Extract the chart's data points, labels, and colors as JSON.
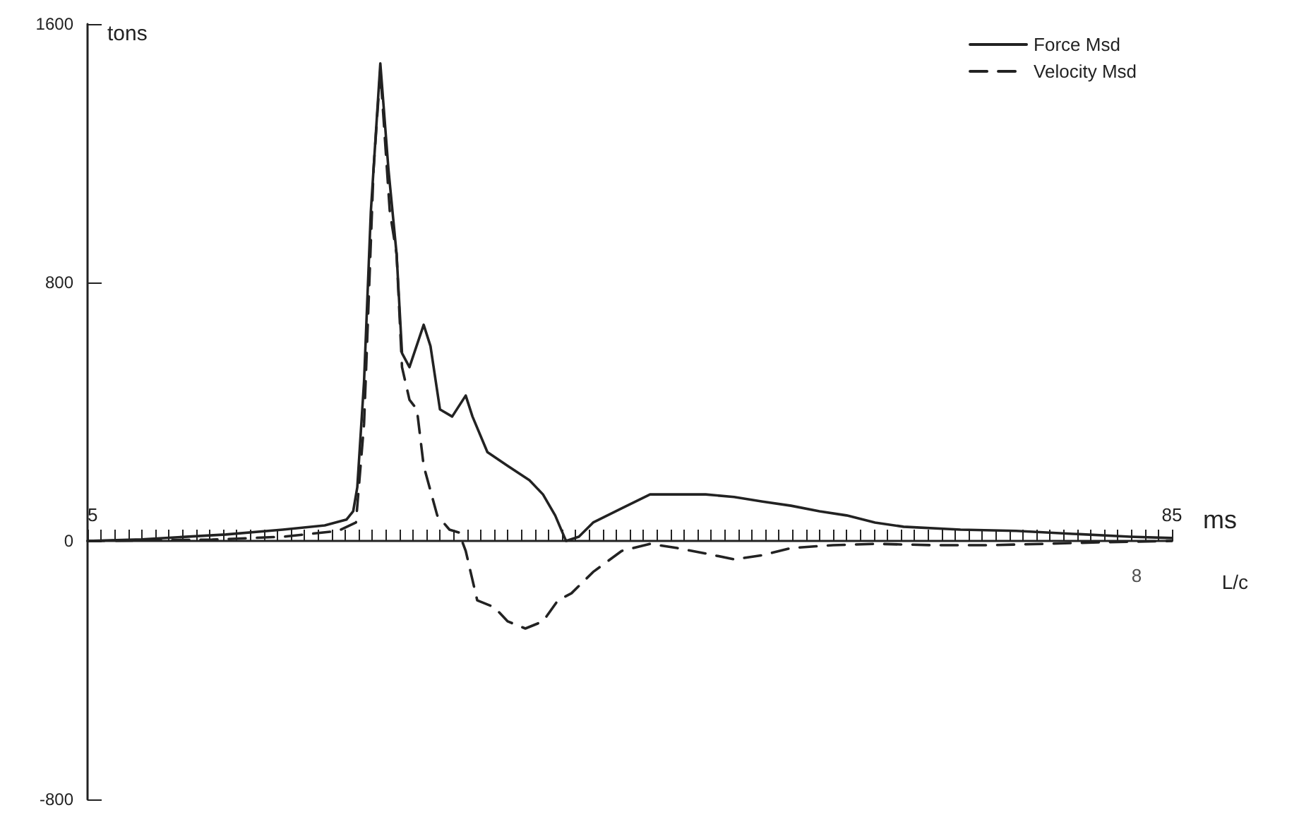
{
  "chart_data": {
    "type": "line",
    "xlabel": "ms",
    "ylabel": "tons",
    "legend": "top right",
    "marker": "none",
    "xlim": [
      5,
      85
    ],
    "ylim": [
      -800,
      1600
    ],
    "yticks": [
      -800,
      0,
      800,
      1600
    ],
    "xticks": [
      5,
      {
        "value": 6,
        "label": null
      },
      {
        "value": 7,
        "label": null
      },
      {
        "value": 8,
        "label": null
      },
      {
        "value": 9,
        "label": null
      },
      {
        "value": 10,
        "label": null
      },
      {
        "value": 11,
        "label": null
      },
      {
        "value": 12,
        "label": null
      },
      {
        "value": 13,
        "label": null
      },
      {
        "value": 14,
        "label": null
      },
      {
        "value": 15,
        "label": null
      },
      {
        "value": 16,
        "label": null
      },
      {
        "value": 17,
        "label": null
      },
      {
        "value": 18,
        "label": null
      },
      {
        "value": 19,
        "label": null
      },
      {
        "value": 20,
        "label": null
      },
      {
        "value": 21,
        "label": null
      },
      {
        "value": 22,
        "label": null
      },
      {
        "value": 23,
        "label": null
      },
      {
        "value": 24,
        "label": null
      },
      {
        "value": 25,
        "label": null
      },
      {
        "value": 26,
        "label": null
      },
      {
        "value": 27,
        "label": null
      },
      {
        "value": 28,
        "label": null
      },
      {
        "value": 29,
        "label": null
      },
      {
        "value": 30,
        "label": null
      },
      {
        "value": 31,
        "label": null
      },
      {
        "value": 32,
        "label": null
      },
      {
        "value": 33,
        "label": null
      },
      {
        "value": 34,
        "label": null
      },
      {
        "value": 35,
        "label": null
      },
      {
        "value": 36,
        "label": null
      },
      {
        "value": 37,
        "label": null
      },
      {
        "value": 38,
        "label": null
      },
      {
        "value": 39,
        "label": null
      },
      {
        "value": 40,
        "label": null
      },
      {
        "value": 41,
        "label": null
      },
      {
        "value": 42,
        "label": null
      },
      {
        "value": 43,
        "label": null
      },
      {
        "value": 44,
        "label": null
      },
      {
        "value": 45,
        "label": null
      },
      {
        "value": 46,
        "label": null
      },
      {
        "value": 47,
        "label": null
      },
      {
        "value": 48,
        "label": null
      },
      {
        "value": 49,
        "label": null
      },
      {
        "value": 50,
        "label": null
      },
      {
        "value": 51,
        "label": null
      },
      {
        "value": 52,
        "label": null
      },
      {
        "value": 53,
        "label": null
      },
      {
        "value": 54,
        "label": null
      },
      {
        "value": 55,
        "label": null
      },
      {
        "value": 56,
        "label": null
      },
      {
        "value": 57,
        "label": null
      },
      {
        "value": 58,
        "label": null
      },
      {
        "value": 59,
        "label": null
      },
      {
        "value": 60,
        "label": null
      },
      {
        "value": 61,
        "label": null
      },
      {
        "value": 62,
        "label": null
      },
      {
        "value": 63,
        "label": null
      },
      {
        "value": 64,
        "label": null
      },
      {
        "value": 65,
        "label": null
      },
      {
        "value": 66,
        "label": null
      },
      {
        "value": 67,
        "label": null
      },
      {
        "value": 68,
        "label": null
      },
      {
        "value": 69,
        "label": null
      },
      {
        "value": 70,
        "label": null
      },
      {
        "value": 71,
        "label": null
      },
      {
        "value": 72,
        "label": null
      },
      {
        "value": 73,
        "label": null
      },
      {
        "value": 74,
        "label": null
      },
      {
        "value": 75,
        "label": null
      },
      {
        "value": 76,
        "label": null
      },
      {
        "value": 77,
        "label": null
      },
      {
        "value": 78,
        "label": null
      },
      {
        "value": 79,
        "label": null
      },
      {
        "value": 80,
        "label": null
      },
      {
        "value": 81,
        "label": null
      },
      {
        "value": 82,
        "label": null
      },
      {
        "value": 83,
        "label": null
      },
      {
        "value": 84,
        "label": null
      },
      85
    ],
    "annotations": [
      {
        "text": "8",
        "x": 82.4,
        "y": 0
      },
      "L/c"
    ],
    "series": [
      {
        "name": "Force Msd",
        "color": "#222222",
        "line_style": "solid",
        "x": [
          5,
          9,
          15.2,
          19.4,
          22.5,
          24.1,
          24.6,
          24.9,
          25.4,
          25.9,
          26.6,
          27.2,
          27.8,
          28.2,
          28.75,
          29.8,
          30.3,
          31,
          31.9,
          32.9,
          33.4,
          34.5,
          36,
          37.6,
          38.6,
          39.5,
          40.3,
          41.25,
          42.3,
          44.4,
          46.5,
          48.5,
          50.6,
          52.7,
          54.8,
          56.9,
          59,
          61,
          63.1,
          65.2,
          69.4,
          73.5,
          77.7,
          81.9,
          85
        ],
        "values": [
          0,
          5,
          20,
          35,
          48,
          66,
          92,
          166,
          494,
          1019,
          1478,
          1150,
          888,
          581,
          538,
          669,
          603,
          407,
          385,
          450,
          385,
          275,
          232,
          188,
          144,
          79,
          0,
          13,
          57,
          101,
          144,
          144,
          144,
          136,
          122,
          109,
          92,
          79,
          57,
          44,
          35,
          31,
          22,
          13,
          9
        ]
      },
      {
        "name": "Velocity Msd",
        "color": "#222222",
        "line_style": "dashed",
        "x": [
          5,
          14.2,
          19.4,
          23.5,
          24.8,
          25.4,
          26.1,
          26.6,
          27.3,
          27.8,
          28.2,
          28.75,
          29.3,
          29.8,
          30.8,
          31.7,
          32.4,
          32.9,
          33.75,
          35,
          36,
          37.3,
          38.6,
          39.7,
          40.7,
          42.3,
          44.4,
          46.5,
          48.5,
          50.6,
          52.7,
          54.8,
          56.9,
          60,
          63.1,
          67.3,
          71.5,
          75.6,
          79.8,
          85
        ],
        "values": [
          0,
          4,
          13,
          31,
          57,
          363,
          1150,
          1456,
          1019,
          888,
          538,
          437,
          407,
          232,
          79,
          35,
          26,
          -31,
          -184,
          -205,
          -249,
          -271,
          -249,
          -184,
          -162,
          -96,
          -31,
          -9,
          -22,
          -39,
          -57,
          -44,
          -22,
          -13,
          -9,
          -13,
          -13,
          -9,
          -4,
          0
        ]
      }
    ]
  }
}
